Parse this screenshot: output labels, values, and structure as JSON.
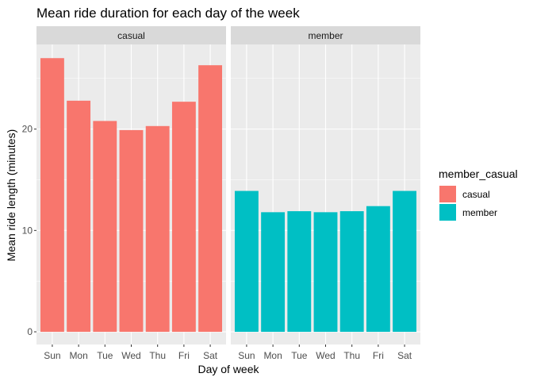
{
  "chart_data": {
    "type": "bar",
    "title": "Mean ride duration for each day of the week",
    "xlabel": "Day of week",
    "ylabel": "Mean ride length (minutes)",
    "categories": [
      "Sun",
      "Mon",
      "Tue",
      "Wed",
      "Thu",
      "Fri",
      "Sat"
    ],
    "ylim": [
      0,
      27.0
    ],
    "yticks": [
      0,
      10,
      20
    ],
    "ytick_labels": [
      "0",
      "10",
      "20"
    ],
    "grid": true,
    "facet_by": "member_casual",
    "legend": {
      "title": "member_casual",
      "placement": "right"
    },
    "series": [
      {
        "name": "casual",
        "color": "#F8766D",
        "values": [
          27.0,
          22.8,
          20.8,
          19.9,
          20.3,
          22.7,
          26.3
        ]
      },
      {
        "name": "member",
        "color": "#00BFC4",
        "values": [
          13.9,
          11.8,
          11.9,
          11.8,
          11.9,
          12.4,
          13.9
        ]
      }
    ]
  }
}
